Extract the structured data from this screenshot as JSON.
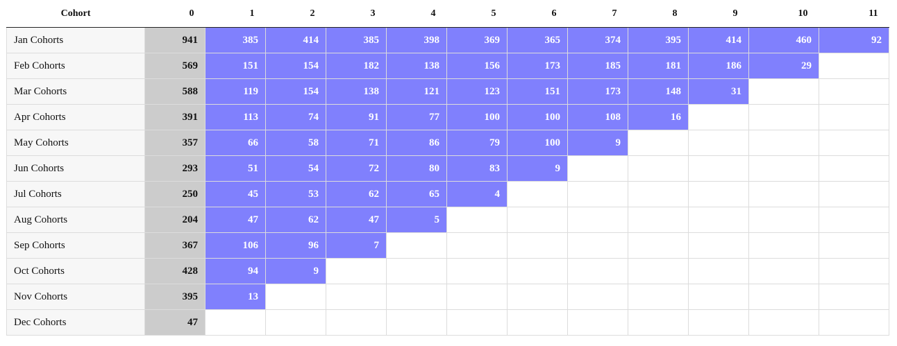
{
  "chart_data": {
    "type": "table",
    "header": {
      "cohort_label": "Cohort",
      "periods": [
        "0",
        "1",
        "2",
        "3",
        "4",
        "5",
        "6",
        "7",
        "8",
        "9",
        "10",
        "11"
      ]
    },
    "rows": [
      {
        "label": "Jan Cohorts",
        "values": [
          941,
          385,
          414,
          385,
          398,
          369,
          365,
          374,
          395,
          414,
          460,
          92
        ]
      },
      {
        "label": "Feb Cohorts",
        "values": [
          569,
          151,
          154,
          182,
          138,
          156,
          173,
          185,
          181,
          186,
          29
        ]
      },
      {
        "label": "Mar Cohorts",
        "values": [
          588,
          119,
          154,
          138,
          121,
          123,
          151,
          173,
          148,
          31
        ]
      },
      {
        "label": "Apr Cohorts",
        "values": [
          391,
          113,
          74,
          91,
          77,
          100,
          100,
          108,
          16
        ]
      },
      {
        "label": "May Cohorts",
        "values": [
          357,
          66,
          58,
          71,
          86,
          79,
          100,
          9
        ]
      },
      {
        "label": "Jun Cohorts",
        "values": [
          293,
          51,
          54,
          72,
          80,
          83,
          9
        ]
      },
      {
        "label": "Jul Cohorts",
        "values": [
          250,
          45,
          53,
          62,
          65,
          4
        ]
      },
      {
        "label": "Aug Cohorts",
        "values": [
          204,
          47,
          62,
          47,
          5
        ]
      },
      {
        "label": "Sep Cohorts",
        "values": [
          367,
          106,
          96,
          7
        ]
      },
      {
        "label": "Oct Cohorts",
        "values": [
          428,
          94,
          9
        ]
      },
      {
        "label": "Nov Cohorts",
        "values": [
          395,
          13
        ]
      },
      {
        "label": "Dec Cohorts",
        "values": [
          47
        ]
      }
    ],
    "colors": {
      "base_column": "#cccccc",
      "filled_cell": "#8080fd",
      "label_column": "#f7f7f7",
      "empty_cell": "#ffffff",
      "grid": "#dcdcdc"
    }
  }
}
